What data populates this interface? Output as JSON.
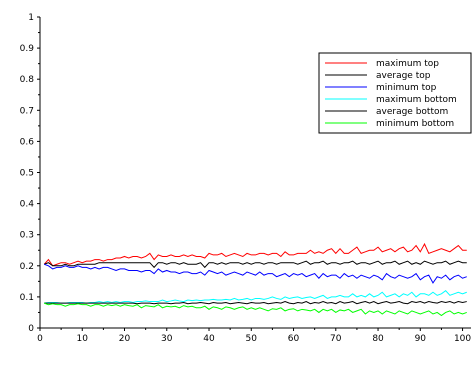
{
  "chart_data": {
    "type": "line",
    "title": "",
    "xlabel": "",
    "ylabel": "",
    "xlim": [
      0,
      102
    ],
    "ylim": [
      0,
      1
    ],
    "x_ticks": [
      "0",
      "10",
      "20",
      "30",
      "40",
      "50",
      "60",
      "70",
      "80",
      "90",
      "100"
    ],
    "y_ticks": [
      "0",
      "0.1",
      "0.2",
      "0.3",
      "0.4",
      "0.5",
      "0.6",
      "0.7",
      "0.8",
      "0.9",
      "1"
    ],
    "grid": false,
    "legend": {
      "placement": "top-right"
    },
    "series": [
      {
        "name": "maximum top",
        "color": "#ff0000",
        "values": [
          0.205,
          0.22,
          0.2,
          0.205,
          0.21,
          0.21,
          0.205,
          0.21,
          0.215,
          0.21,
          0.215,
          0.215,
          0.22,
          0.22,
          0.215,
          0.22,
          0.22,
          0.225,
          0.225,
          0.23,
          0.225,
          0.23,
          0.23,
          0.225,
          0.23,
          0.24,
          0.22,
          0.235,
          0.23,
          0.23,
          0.235,
          0.23,
          0.23,
          0.235,
          0.23,
          0.235,
          0.23,
          0.23,
          0.225,
          0.24,
          0.235,
          0.235,
          0.24,
          0.23,
          0.235,
          0.24,
          0.235,
          0.23,
          0.24,
          0.235,
          0.235,
          0.24,
          0.24,
          0.235,
          0.24,
          0.24,
          0.23,
          0.245,
          0.235,
          0.235,
          0.24,
          0.24,
          0.24,
          0.25,
          0.24,
          0.245,
          0.24,
          0.25,
          0.255,
          0.24,
          0.255,
          0.24,
          0.24,
          0.25,
          0.26,
          0.24,
          0.245,
          0.25,
          0.25,
          0.26,
          0.245,
          0.25,
          0.255,
          0.245,
          0.255,
          0.26,
          0.245,
          0.25,
          0.265,
          0.245,
          0.27,
          0.24,
          0.245,
          0.25,
          0.255,
          0.25,
          0.245,
          0.255,
          0.265,
          0.25,
          0.25
        ]
      },
      {
        "name": "average top",
        "color": "#000000",
        "values": [
          0.205,
          0.21,
          0.2,
          0.2,
          0.2,
          0.205,
          0.2,
          0.2,
          0.205,
          0.205,
          0.205,
          0.205,
          0.205,
          0.21,
          0.21,
          0.21,
          0.21,
          0.21,
          0.21,
          0.21,
          0.21,
          0.21,
          0.21,
          0.21,
          0.21,
          0.21,
          0.195,
          0.21,
          0.21,
          0.205,
          0.21,
          0.21,
          0.205,
          0.21,
          0.205,
          0.205,
          0.205,
          0.21,
          0.195,
          0.21,
          0.21,
          0.205,
          0.21,
          0.205,
          0.21,
          0.21,
          0.21,
          0.205,
          0.21,
          0.205,
          0.21,
          0.21,
          0.205,
          0.21,
          0.21,
          0.205,
          0.21,
          0.21,
          0.21,
          0.21,
          0.205,
          0.21,
          0.215,
          0.205,
          0.21,
          0.21,
          0.215,
          0.205,
          0.21,
          0.21,
          0.205,
          0.21,
          0.21,
          0.215,
          0.205,
          0.21,
          0.21,
          0.205,
          0.21,
          0.215,
          0.205,
          0.21,
          0.21,
          0.215,
          0.205,
          0.21,
          0.215,
          0.205,
          0.21,
          0.205,
          0.215,
          0.21,
          0.205,
          0.21,
          0.21,
          0.215,
          0.205,
          0.21,
          0.215,
          0.21,
          0.21
        ]
      },
      {
        "name": "minimum top",
        "color": "#0000ff",
        "values": [
          0.205,
          0.2,
          0.19,
          0.195,
          0.195,
          0.2,
          0.195,
          0.195,
          0.2,
          0.195,
          0.195,
          0.19,
          0.195,
          0.19,
          0.195,
          0.195,
          0.19,
          0.185,
          0.19,
          0.19,
          0.185,
          0.185,
          0.185,
          0.18,
          0.185,
          0.185,
          0.175,
          0.19,
          0.18,
          0.185,
          0.18,
          0.18,
          0.175,
          0.18,
          0.18,
          0.175,
          0.175,
          0.18,
          0.17,
          0.185,
          0.18,
          0.175,
          0.18,
          0.17,
          0.175,
          0.18,
          0.175,
          0.17,
          0.18,
          0.175,
          0.17,
          0.18,
          0.17,
          0.175,
          0.175,
          0.165,
          0.17,
          0.175,
          0.165,
          0.175,
          0.17,
          0.175,
          0.165,
          0.17,
          0.175,
          0.16,
          0.175,
          0.165,
          0.17,
          0.17,
          0.16,
          0.175,
          0.165,
          0.17,
          0.16,
          0.17,
          0.165,
          0.16,
          0.17,
          0.165,
          0.155,
          0.175,
          0.165,
          0.16,
          0.17,
          0.165,
          0.16,
          0.165,
          0.175,
          0.155,
          0.165,
          0.17,
          0.145,
          0.165,
          0.16,
          0.17,
          0.155,
          0.165,
          0.17,
          0.16,
          0.165
        ]
      },
      {
        "name": "maximum bottom",
        "color": "#00ffff",
        "values": [
          0.08,
          0.082,
          0.082,
          0.082,
          0.08,
          0.08,
          0.082,
          0.082,
          0.082,
          0.082,
          0.08,
          0.082,
          0.082,
          0.085,
          0.082,
          0.085,
          0.082,
          0.085,
          0.082,
          0.085,
          0.085,
          0.082,
          0.085,
          0.085,
          0.087,
          0.085,
          0.085,
          0.085,
          0.09,
          0.085,
          0.087,
          0.09,
          0.087,
          0.085,
          0.09,
          0.088,
          0.09,
          0.088,
          0.09,
          0.09,
          0.092,
          0.09,
          0.09,
          0.092,
          0.09,
          0.095,
          0.09,
          0.092,
          0.095,
          0.09,
          0.095,
          0.095,
          0.092,
          0.095,
          0.1,
          0.095,
          0.092,
          0.1,
          0.095,
          0.098,
          0.1,
          0.095,
          0.098,
          0.1,
          0.095,
          0.1,
          0.105,
          0.095,
          0.1,
          0.1,
          0.105,
          0.1,
          0.1,
          0.11,
          0.1,
          0.105,
          0.1,
          0.11,
          0.1,
          0.105,
          0.115,
          0.1,
          0.105,
          0.11,
          0.1,
          0.11,
          0.105,
          0.115,
          0.1,
          0.11,
          0.11,
          0.105,
          0.115,
          0.105,
          0.11,
          0.12,
          0.105,
          0.11,
          0.115,
          0.11,
          0.115
        ]
      },
      {
        "name": "average bottom",
        "color": "#000000",
        "values": [
          0.08,
          0.08,
          0.08,
          0.08,
          0.08,
          0.08,
          0.08,
          0.08,
          0.08,
          0.08,
          0.08,
          0.08,
          0.08,
          0.08,
          0.08,
          0.08,
          0.08,
          0.08,
          0.08,
          0.08,
          0.08,
          0.08,
          0.078,
          0.08,
          0.08,
          0.08,
          0.078,
          0.08,
          0.08,
          0.08,
          0.078,
          0.08,
          0.08,
          0.082,
          0.078,
          0.08,
          0.08,
          0.082,
          0.08,
          0.078,
          0.082,
          0.08,
          0.08,
          0.082,
          0.078,
          0.08,
          0.082,
          0.08,
          0.078,
          0.082,
          0.08,
          0.08,
          0.082,
          0.078,
          0.08,
          0.082,
          0.08,
          0.085,
          0.08,
          0.078,
          0.082,
          0.08,
          0.085,
          0.078,
          0.082,
          0.08,
          0.085,
          0.08,
          0.082,
          0.078,
          0.085,
          0.08,
          0.082,
          0.085,
          0.078,
          0.082,
          0.085,
          0.08,
          0.085,
          0.078,
          0.082,
          0.085,
          0.08,
          0.082,
          0.085,
          0.08,
          0.078,
          0.085,
          0.082,
          0.085,
          0.08,
          0.085,
          0.082,
          0.08,
          0.085,
          0.082,
          0.085,
          0.08,
          0.085,
          0.082,
          0.085
        ]
      },
      {
        "name": "minimum bottom",
        "color": "#00ff00",
        "values": [
          0.08,
          0.075,
          0.078,
          0.075,
          0.075,
          0.07,
          0.075,
          0.075,
          0.078,
          0.075,
          0.075,
          0.07,
          0.075,
          0.075,
          0.07,
          0.075,
          0.072,
          0.075,
          0.07,
          0.075,
          0.072,
          0.07,
          0.075,
          0.065,
          0.072,
          0.07,
          0.068,
          0.075,
          0.065,
          0.07,
          0.068,
          0.07,
          0.065,
          0.072,
          0.068,
          0.07,
          0.065,
          0.065,
          0.07,
          0.06,
          0.068,
          0.065,
          0.06,
          0.068,
          0.065,
          0.06,
          0.065,
          0.068,
          0.06,
          0.065,
          0.06,
          0.065,
          0.06,
          0.055,
          0.062,
          0.06,
          0.065,
          0.055,
          0.06,
          0.062,
          0.055,
          0.06,
          0.058,
          0.055,
          0.06,
          0.05,
          0.06,
          0.055,
          0.06,
          0.05,
          0.058,
          0.055,
          0.06,
          0.05,
          0.055,
          0.06,
          0.045,
          0.055,
          0.05,
          0.055,
          0.045,
          0.055,
          0.05,
          0.045,
          0.055,
          0.05,
          0.045,
          0.055,
          0.05,
          0.045,
          0.05,
          0.055,
          0.045,
          0.05,
          0.04,
          0.05,
          0.055,
          0.045,
          0.05,
          0.045,
          0.05
        ]
      }
    ]
  }
}
